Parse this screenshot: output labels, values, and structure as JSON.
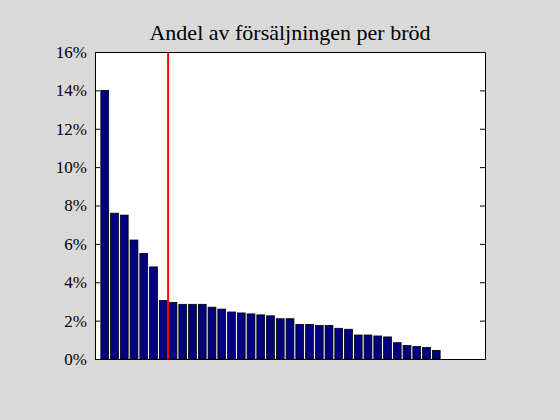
{
  "chart_data": {
    "type": "bar",
    "title": "Andel av försäljningen per bröd",
    "x": [
      1,
      2,
      3,
      4,
      5,
      6,
      7,
      8,
      9,
      10,
      11,
      12,
      13,
      14,
      15,
      16,
      17,
      18,
      19,
      20,
      21,
      22,
      23,
      24,
      25,
      26,
      27,
      28,
      29,
      30,
      31,
      32,
      33,
      34,
      35
    ],
    "values": [
      14.0,
      7.6,
      7.5,
      6.2,
      5.5,
      4.8,
      3.05,
      2.95,
      2.85,
      2.85,
      2.85,
      2.7,
      2.6,
      2.45,
      2.4,
      2.35,
      2.3,
      2.25,
      2.1,
      2.1,
      1.8,
      1.8,
      1.75,
      1.75,
      1.6,
      1.55,
      1.25,
      1.25,
      1.2,
      1.15,
      0.85,
      0.7,
      0.65,
      0.6,
      0.45
    ],
    "color": "#000080",
    "xlim": [
      0,
      40
    ],
    "xticks": [],
    "ylim": [
      0,
      16
    ],
    "yticks": [
      {
        "value": 0,
        "label": "0%"
      },
      {
        "value": 2,
        "label": "2%"
      },
      {
        "value": 4,
        "label": "4%"
      },
      {
        "value": 6,
        "label": "6%"
      },
      {
        "value": 8,
        "label": "8%"
      },
      {
        "value": 10,
        "label": "10%"
      },
      {
        "value": 12,
        "label": "12%"
      },
      {
        "value": 14,
        "label": "14%"
      },
      {
        "value": 16,
        "label": "16%"
      }
    ],
    "tick_labels": "y",
    "grid": false,
    "vertical_line": {
      "x": 7.5,
      "color": "#ff0000"
    }
  }
}
